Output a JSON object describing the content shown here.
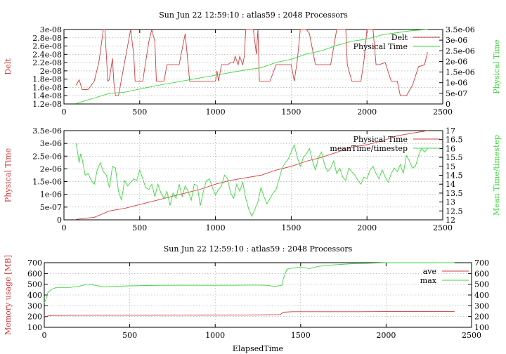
{
  "colors": {
    "red": "#d23b3b",
    "green": "#3fd83f"
  },
  "chart_data": [
    {
      "type": "line",
      "title": "Sun Jun 22 12:59:10 : atlas59 : 2048 Processors",
      "xlabel": "",
      "ylabel": "Delt",
      "y2label": "Physical Time",
      "xlim": [
        0,
        2500
      ],
      "ylim": [
        1.2e-08,
        3e-08
      ],
      "y2lim": [
        0,
        3.5e-06
      ],
      "xticks": [
        "0",
        "500",
        "1000",
        "1500",
        "2000",
        "2500"
      ],
      "yticks": [
        "1.2e-08",
        "1.4e-08",
        "1.6e-08",
        "1.8e-08",
        "2e-08",
        "2.2e-08",
        "2.4e-08",
        "2.6e-08",
        "2.8e-08",
        "3e-08"
      ],
      "y2ticks": [
        "0",
        "5e-07",
        "1e-06",
        "1.5e-06",
        "2e-06",
        "2.5e-06",
        "3e-06",
        "3.5e-06"
      ],
      "legend": "top-right",
      "grid": true,
      "series": [
        {
          "name": "Delt",
          "color": "red",
          "axis": "y",
          "x": [
            80,
            100,
            120,
            160,
            200,
            230,
            260,
            270,
            290,
            300,
            320,
            330,
            340,
            360,
            400,
            440,
            460,
            470,
            520,
            560,
            580,
            600,
            610,
            630,
            660,
            680,
            700,
            720,
            760,
            800,
            830,
            850,
            870,
            930,
            1000,
            1010,
            1020,
            1040,
            1080,
            1100,
            1120,
            1130,
            1150,
            1160,
            1180,
            1190,
            1200,
            1210,
            1230,
            1250,
            1270,
            1280,
            1290,
            1300,
            1360,
            1400,
            1500,
            1520,
            1540,
            1560,
            1580,
            1600,
            1620,
            1660,
            1700,
            1720,
            1760,
            1800,
            1860,
            1870,
            1900,
            1960,
            1980,
            2000,
            2040,
            2060,
            2080,
            2120,
            2160,
            2200,
            2220,
            2260,
            2300,
            2340,
            2380,
            2400
          ],
          "y": [
            1.65e-08,
            1.78e-08,
            1.55e-08,
            1.55e-08,
            1.75e-08,
            2.2e-08,
            3e-08,
            3e-08,
            1.75e-08,
            1.8e-08,
            2.3e-08,
            1.7e-08,
            1.4e-08,
            1.4e-08,
            2.2e-08,
            3e-08,
            2.4e-08,
            1.75e-08,
            1.75e-08,
            2.7e-08,
            3e-08,
            2.7e-08,
            1.75e-08,
            1.75e-08,
            1.75e-08,
            2.15e-08,
            2.15e-08,
            2.15e-08,
            2.15e-08,
            2.9e-08,
            1.75e-08,
            1.75e-08,
            1.75e-08,
            1.75e-08,
            1.75e-08,
            2e-08,
            1.75e-08,
            2.15e-08,
            2.15e-08,
            2.2e-08,
            2.2e-08,
            2.35e-08,
            2.15e-08,
            2.35e-08,
            2.15e-08,
            2.35e-08,
            3e-08,
            3e-08,
            3e-08,
            3e-08,
            2.4e-08,
            3e-08,
            1.75e-08,
            1.75e-08,
            1.75e-08,
            2.15e-08,
            2.15e-08,
            1.75e-08,
            2.25e-08,
            3e-08,
            3e-08,
            3e-08,
            2.9e-08,
            2.15e-08,
            2.15e-08,
            2.15e-08,
            2.15e-08,
            3e-08,
            3e-08,
            2.15e-08,
            1.75e-08,
            1.75e-08,
            2.25e-08,
            3e-08,
            3e-08,
            2.15e-08,
            2.15e-08,
            2.2e-08,
            1.75e-08,
            1.75e-08,
            1.4e-08,
            1.4e-08,
            1.65e-08,
            2.1e-08,
            2.15e-08,
            2.45e-08
          ]
        },
        {
          "name": "Physical Time",
          "color": "green",
          "axis": "y2",
          "x": [
            80,
            300,
            400,
            600,
            800,
            1000,
            1200,
            1300,
            1400,
            1500,
            1600,
            1700,
            1800,
            1900,
            2000,
            2100,
            2200,
            2300,
            2400
          ],
          "y": [
            2e-08,
            5e-07,
            5.5e-07,
            8.5e-07,
            1.1e-06,
            1.35e-06,
            1.6e-06,
            1.7e-06,
            1.95e-06,
            2.1e-06,
            2.35e-06,
            2.5e-06,
            2.75e-06,
            2.95e-06,
            3.05e-06,
            3.25e-06,
            3.35e-06,
            3.45e-06,
            3.5e-06
          ]
        }
      ]
    },
    {
      "type": "line",
      "title": "",
      "xlabel": "",
      "ylabel": "Physical Time",
      "y2label": "Mean Time/timestep",
      "xlim": [
        0,
        2500
      ],
      "ylim": [
        0,
        3.5e-06
      ],
      "y2lim": [
        12,
        17
      ],
      "xticks": [
        "0",
        "500",
        "1000",
        "1500",
        "2000",
        "2500"
      ],
      "yticks": [
        "0",
        "5e-07",
        "1e-06",
        "1.5e-06",
        "2e-06",
        "2.5e-06",
        "3e-06",
        "3.5e-06"
      ],
      "y2ticks": [
        "12",
        "12.5",
        "13",
        "13.5",
        "14",
        "14.5",
        "15",
        "15.5",
        "16",
        "16.5",
        "17"
      ],
      "legend": "top-right",
      "grid": true,
      "series": [
        {
          "name": "Physical Time",
          "color": "red",
          "axis": "y",
          "x": [
            80,
            200,
            300,
            400,
            500,
            600,
            700,
            800,
            900,
            1000,
            1100,
            1200,
            1300,
            1400,
            1500,
            1600,
            1700,
            1800,
            1900,
            2000,
            2100,
            2200,
            2300,
            2400
          ],
          "y": [
            2e-08,
            1e-07,
            3.5e-07,
            4.5e-07,
            6e-07,
            7.5e-07,
            9e-07,
            1.05e-06,
            1.2e-06,
            1.4e-06,
            1.55e-06,
            1.65e-06,
            1.75e-06,
            1.95e-06,
            2.1e-06,
            2.3e-06,
            2.45e-06,
            2.65e-06,
            2.85e-06,
            2.95e-06,
            3.1e-06,
            3.3e-06,
            3.4e-06,
            3.5e-06
          ]
        },
        {
          "name": "meanTime/timestep",
          "color": "green",
          "axis": "y2",
          "x": [
            80,
            90,
            100,
            110,
            120,
            140,
            160,
            180,
            200,
            220,
            240,
            260,
            280,
            300,
            320,
            340,
            360,
            380,
            400,
            420,
            440,
            460,
            480,
            500,
            520,
            540,
            560,
            580,
            600,
            620,
            640,
            660,
            680,
            700,
            720,
            740,
            760,
            780,
            800,
            820,
            840,
            860,
            880,
            900,
            920,
            940,
            960,
            980,
            1000,
            1020,
            1040,
            1060,
            1080,
            1100,
            1120,
            1140,
            1160,
            1180,
            1200,
            1220,
            1240,
            1260,
            1280,
            1300,
            1320,
            1340,
            1360,
            1380,
            1400,
            1420,
            1440,
            1460,
            1480,
            1500,
            1520,
            1540,
            1560,
            1580,
            1600,
            1620,
            1640,
            1660,
            1680,
            1700,
            1720,
            1740,
            1760,
            1780,
            1800,
            1820,
            1840,
            1860,
            1880,
            1900,
            1920,
            1940,
            1960,
            1980,
            2000,
            2020,
            2040,
            2060,
            2080,
            2100,
            2120,
            2140,
            2160,
            2180,
            2200,
            2220,
            2240,
            2260,
            2280,
            2300,
            2320,
            2340,
            2360,
            2380,
            2400
          ],
          "y": [
            16.3,
            15.8,
            15.2,
            15.7,
            15.4,
            14.5,
            14.6,
            14.2,
            14.0,
            14.8,
            15.2,
            14.7,
            14.5,
            13.8,
            15.0,
            14.9,
            13.6,
            13.1,
            14.2,
            13.9,
            14.1,
            14.3,
            14.2,
            14.8,
            14.3,
            13.8,
            13.7,
            14.0,
            13.3,
            14.0,
            13.5,
            13.2,
            13.6,
            12.8,
            13.5,
            13.2,
            14.0,
            13.3,
            13.9,
            13.6,
            13.1,
            14.0,
            13.9,
            12.8,
            13.6,
            14.2,
            14.3,
            13.8,
            13.4,
            13.7,
            13.9,
            14.5,
            14.3,
            13.5,
            13.2,
            14.0,
            13.6,
            14.1,
            13.2,
            12.6,
            12.2,
            12.6,
            13.0,
            13.8,
            13.3,
            12.9,
            13.2,
            13.5,
            13.7,
            14.3,
            14.9,
            15.2,
            15.4,
            15.8,
            16.2,
            15.5,
            15.0,
            15.5,
            15.7,
            16.0,
            15.3,
            14.8,
            15.5,
            15.8,
            15.1,
            14.7,
            14.9,
            15.3,
            14.6,
            14.9,
            14.4,
            14.2,
            14.9,
            14.7,
            14.5,
            14.2,
            14.0,
            14.4,
            14.3,
            14.8,
            15.0,
            14.6,
            14.3,
            14.8,
            14.4,
            14.1,
            14.6,
            14.9,
            14.7,
            15.1,
            14.6,
            15.6,
            15.3,
            14.9,
            15.0,
            15.6,
            16.0,
            15.8,
            16.0
          ]
        }
      ]
    },
    {
      "type": "line",
      "title": "Sun Jun 22 12:59:10 : atlas59 : 2048 Processors",
      "xlabel": "ElapsedTime",
      "ylabel": "Memory usage [MB]",
      "y2label": "",
      "xlim": [
        0,
        2500
      ],
      "ylim": [
        100,
        700
      ],
      "y2lim": [
        100,
        700
      ],
      "xticks": [
        "0",
        "500",
        "1000",
        "1500",
        "2000",
        "2500"
      ],
      "yticks": [
        "100",
        "200",
        "300",
        "400",
        "500",
        "600",
        "700"
      ],
      "y2ticks": [
        "100",
        "200",
        "300",
        "400",
        "500",
        "600",
        "700"
      ],
      "legend": "top-right",
      "grid": true,
      "series": [
        {
          "name": "ave",
          "color": "red",
          "axis": "y",
          "x": [
            0,
            5,
            20,
            50,
            100,
            300,
            600,
            1000,
            1200,
            1380,
            1400,
            1450,
            1500,
            1800,
            2000,
            2200,
            2400
          ],
          "y": [
            210,
            195,
            205,
            210,
            210,
            212,
            212,
            214,
            215,
            218,
            240,
            245,
            245,
            245,
            246,
            246,
            246
          ]
        },
        {
          "name": "max",
          "color": "green",
          "axis": "y",
          "x": [
            0,
            10,
            20,
            40,
            70,
            100,
            150,
            200,
            250,
            300,
            350,
            400,
            500,
            600,
            700,
            800,
            900,
            1000,
            1100,
            1200,
            1250,
            1300,
            1350,
            1390,
            1400,
            1420,
            1450,
            1500,
            1550,
            1600,
            1650,
            1700,
            1800,
            1900,
            2000,
            2100,
            2200,
            2300,
            2400
          ],
          "y": [
            330,
            360,
            420,
            450,
            470,
            470,
            470,
            480,
            500,
            490,
            475,
            480,
            485,
            488,
            490,
            490,
            490,
            490,
            490,
            492,
            492,
            490,
            480,
            490,
            560,
            640,
            650,
            660,
            645,
            665,
            675,
            680,
            690,
            695,
            700,
            700,
            700,
            700,
            700
          ]
        }
      ]
    }
  ]
}
